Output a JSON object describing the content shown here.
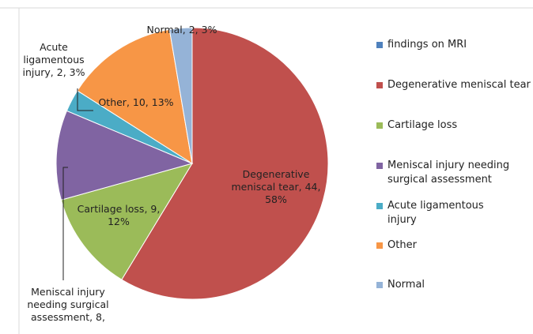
{
  "chart_data": {
    "type": "pie",
    "categories": [
      "findings on MRI",
      "Degenerative meniscal tear",
      "Cartilage loss",
      "Meniscal injury needing surgical assessment",
      "Acute ligamentous injury",
      "Other",
      "Normal"
    ],
    "values": [
      null,
      44,
      9,
      8,
      2,
      10,
      2
    ],
    "value_labels": [
      null,
      "Degenerative meniscal tear, 44, 58%",
      "Cartilage loss, 9, 12%",
      "Meniscal injury needing surgical assessment, 8,",
      "Acute ligamentous injury, 2, 3%",
      "Other, 10, 13%",
      "Normal, 2, 3%"
    ],
    "colors": [
      "#4f81bd",
      "#c0504d",
      "#9bbb59",
      "#8064a2",
      "#4bacc6",
      "#f79646",
      "#95b3d7"
    ],
    "legend": "right"
  }
}
